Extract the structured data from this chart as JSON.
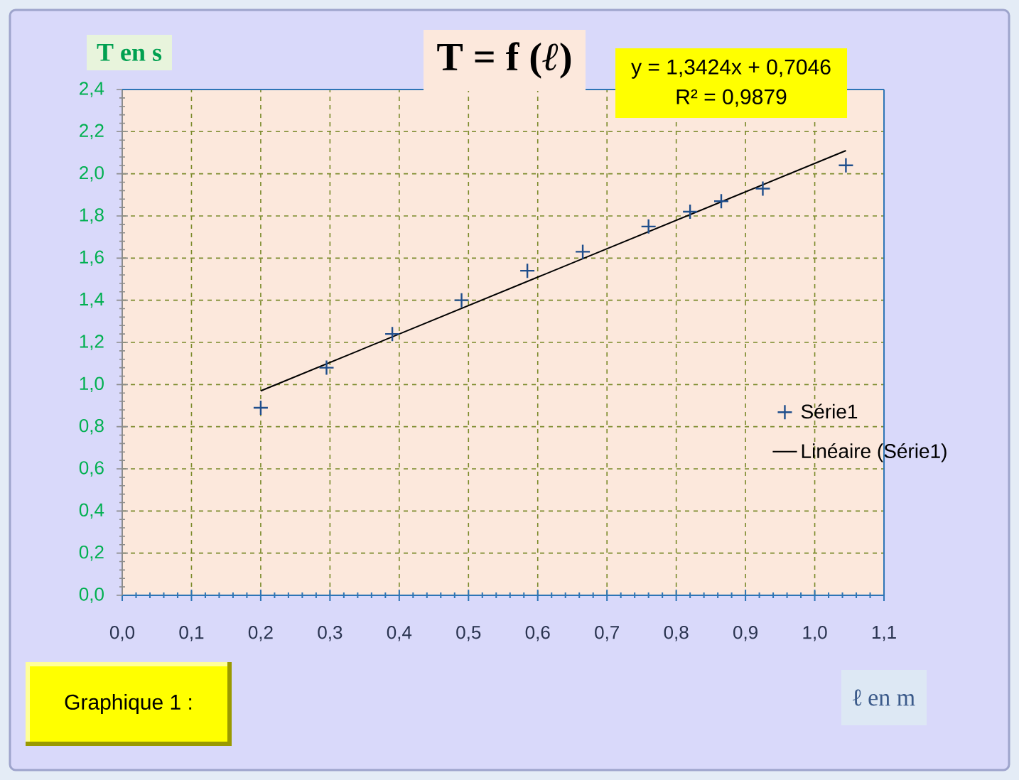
{
  "chart_data": {
    "type": "scatter",
    "title": "T = f (*ℓ*)",
    "xlabel": "**ℓ** en m",
    "ylabel": "T en s",
    "annotations": [
      "y = 1,3424x + 0,7046",
      "R² = 0,9879",
      "Graphique 1 :"
    ],
    "x": [
      0.2,
      0.295,
      0.39,
      0.49,
      0.585,
      0.665,
      0.76,
      0.82,
      0.865,
      0.925,
      1.045
    ],
    "series": [
      {
        "name": "Série1",
        "type": "scatter",
        "color": "#1f4e8c",
        "marker": "cross",
        "values": [
          0.89,
          1.08,
          1.24,
          1.4,
          1.54,
          1.63,
          1.75,
          1.82,
          1.87,
          1.93,
          2.04
        ]
      },
      {
        "name": "Linéaire (Série1)",
        "type": "line",
        "color": "#000000",
        "marker": "none",
        "x": [
          0.2,
          1.045
        ],
        "values": [
          0.97,
          2.11
        ]
      }
    ],
    "xlim": [
      0,
      1.1
    ],
    "ylim": [
      0,
      2.4
    ],
    "xticks": [
      {
        "value": 0,
        "label": "0,0"
      },
      {
        "value": 0.1,
        "label": "0,1"
      },
      {
        "value": 0.2,
        "label": "0,2"
      },
      {
        "value": 0.3,
        "label": "0,3"
      },
      {
        "value": 0.4,
        "label": "0,4"
      },
      {
        "value": 0.5,
        "label": "0,5"
      },
      {
        "value": 0.6,
        "label": "0,6"
      },
      {
        "value": 0.7,
        "label": "0,7"
      },
      {
        "value": 0.8,
        "label": "0,8"
      },
      {
        "value": 0.9,
        "label": "0,9"
      },
      {
        "value": 1.0,
        "label": "1,0"
      },
      {
        "value": 1.1,
        "label": "1,1"
      }
    ],
    "yticks": [
      {
        "value": 0,
        "label": "0,0"
      },
      {
        "value": 0.2,
        "label": "0,2"
      },
      {
        "value": 0.4,
        "label": "0,4"
      },
      {
        "value": 0.6,
        "label": "0,6"
      },
      {
        "value": 0.8,
        "label": "0,8"
      },
      {
        "value": 1.0,
        "label": "1,0"
      },
      {
        "value": 1.2,
        "label": "1,2"
      },
      {
        "value": 1.4,
        "label": "1,4"
      },
      {
        "value": 1.6,
        "label": "1,6"
      },
      {
        "value": 1.8,
        "label": "1,8"
      },
      {
        "value": 2.0,
        "label": "2,0"
      },
      {
        "value": 2.2,
        "label": "2,2"
      },
      {
        "value": 2.4,
        "label": "2,4"
      }
    ],
    "grid": true,
    "legend": "right"
  }
}
